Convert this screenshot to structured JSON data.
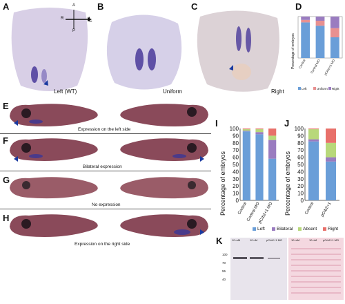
{
  "panels": {
    "A": {
      "label": "A",
      "caption": "Left (WT)"
    },
    "B": {
      "label": "B",
      "caption": "Uniform"
    },
    "C": {
      "label": "C",
      "caption": "Right"
    },
    "D": {
      "label": "D"
    },
    "E": {
      "label": "E",
      "caption": "Expression on the left side"
    },
    "F": {
      "label": "F",
      "caption": "Bilateral expression"
    },
    "G": {
      "label": "G",
      "caption": "No expression"
    },
    "H": {
      "label": "H",
      "caption": "Expression on the right side"
    },
    "I": {
      "label": "I"
    },
    "J": {
      "label": "J"
    },
    "K": {
      "label": "K"
    }
  },
  "axes_compass": {
    "a": "A",
    "p": "P",
    "r": "R",
    "l": "L"
  },
  "colors": {
    "left": "#6a9ed8",
    "bilateral": "#9a7cc0",
    "absent": "#b8d87a",
    "right": "#e8706a",
    "uniform": "#e89090",
    "embryo_bg": "#d8cfe6",
    "stain": "#4a3a9a",
    "tadpole": "#8a4a5a",
    "gel": "#e8e4ec",
    "ponceau": "#f4d8e0"
  },
  "chart_data": [
    {
      "id": "I",
      "type": "bar",
      "stacked": true,
      "ylabel": "Percentage of embryos",
      "yticks": [
        "0",
        "10",
        "20",
        "30",
        "40",
        "50",
        "60",
        "70",
        "80",
        "90",
        "100"
      ],
      "ylim": [
        0,
        100
      ],
      "categories": [
        "Control",
        "Control MO",
        "pCrb2+1 MO"
      ],
      "series": [
        {
          "name": "Left",
          "color": "#6a9ed8",
          "values": [
            96,
            92,
            58
          ]
        },
        {
          "name": "Bilateral",
          "color": "#9a7cc0",
          "values": [
            1,
            3,
            26
          ]
        },
        {
          "name": "Absent",
          "color": "#b8d87a",
          "values": [
            2,
            4,
            6
          ]
        },
        {
          "name": "Right",
          "color": "#e8706a",
          "values": [
            1,
            1,
            10
          ]
        }
      ],
      "legend": [
        "Left",
        "Bilateral",
        "Absent",
        "Right"
      ]
    },
    {
      "id": "J",
      "type": "bar",
      "stacked": true,
      "ylabel": "Percentage of embryos",
      "yticks": [
        "0",
        "10",
        "20",
        "30",
        "40",
        "50",
        "60",
        "70",
        "80",
        "90",
        "100"
      ],
      "ylim": [
        0,
        100
      ],
      "categories": [
        "Control",
        "pCrb2+1"
      ],
      "series": [
        {
          "name": "Left",
          "color": "#6a9ed8",
          "values": [
            82,
            54
          ]
        },
        {
          "name": "Bilateral",
          "color": "#9a7cc0",
          "values": [
            3,
            6
          ]
        },
        {
          "name": "Absent",
          "color": "#b8d87a",
          "values": [
            14,
            20
          ]
        },
        {
          "name": "Right",
          "color": "#e8706a",
          "values": [
            1,
            20
          ]
        }
      ]
    },
    {
      "id": "D",
      "type": "bar",
      "stacked": true,
      "ylabel": "Percentage of embryos",
      "categories": [
        "Control",
        "Control MO",
        "pCrb2+1 MO"
      ],
      "series": [
        {
          "name": "Left",
          "color": "#6a9ed8",
          "values": [
            86,
            78,
            50
          ]
        },
        {
          "name": "Uniform",
          "color": "#e89090",
          "values": [
            6,
            12,
            22
          ]
        },
        {
          "name": "Right",
          "color": "#9a7cc0",
          "values": [
            8,
            10,
            28
          ]
        }
      ],
      "legend": [
        "Left",
        "Uniform",
        "Right"
      ]
    }
  ],
  "blot": {
    "lanes": [
      "10 mM",
      "10 nM",
      "pCrb2+1 MO",
      "10 mM",
      "10 nM",
      "pCrb2+1 MO"
    ],
    "markers": [
      "100",
      "70",
      "55",
      "40"
    ]
  }
}
